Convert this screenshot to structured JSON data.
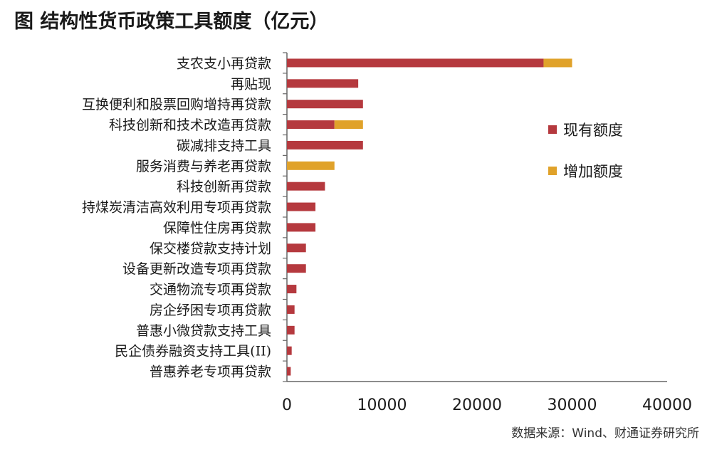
{
  "title": "图  结构性货币政策工具额度（亿元）",
  "source": "数据来源：Wind、财通证券研究所",
  "chart_data": {
    "type": "bar",
    "orientation": "horizontal",
    "stacked": true,
    "categories": [
      "支农支小再贷款",
      "再贴现",
      "互换便利和股票回购增持再贷款",
      "科技创新和技术改造再贷款",
      "碳减排支持工具",
      "服务消费与养老再贷款",
      "科技创新再贷款",
      "持煤炭清洁高效利用专项再贷款",
      "保障性住房再贷款",
      "保交楼贷款支持计划",
      "设备更新改造专项再贷款",
      "交通物流专项再贷款",
      "房企纾困专项再贷款",
      "普惠小微贷款支持工具",
      "民企债券融资支持工具(II)",
      "普惠养老专项再贷款"
    ],
    "series": [
      {
        "name": "现有额度",
        "color": "#b5393e",
        "values": [
          27000,
          7500,
          8000,
          5000,
          8000,
          0,
          4000,
          3000,
          3000,
          2000,
          2000,
          1000,
          800,
          800,
          500,
          400
        ]
      },
      {
        "name": "增加额度",
        "color": "#e0a22a",
        "values": [
          3000,
          0,
          0,
          3000,
          0,
          5000,
          0,
          0,
          0,
          0,
          0,
          0,
          0,
          0,
          0,
          0
        ]
      }
    ],
    "xlim": [
      0,
      40000
    ],
    "xticks": [
      "0",
      "10000",
      "20000",
      "30000",
      "40000"
    ],
    "legend_position": "right",
    "grid": false
  }
}
